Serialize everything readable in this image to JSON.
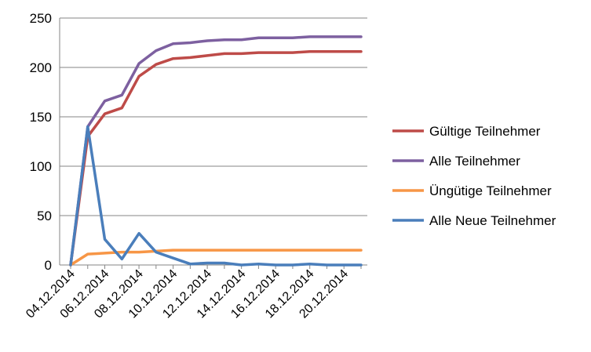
{
  "chart_data": {
    "type": "line",
    "title": "",
    "xlabel": "",
    "ylabel": "",
    "ylim": [
      0,
      250
    ],
    "yticks": [
      0,
      50,
      100,
      150,
      200,
      250
    ],
    "grid": "horizontal",
    "legend_position": "right",
    "x": [
      "04.12.2014",
      "05.12.2014",
      "06.12.2014",
      "07.12.2014",
      "08.12.2014",
      "09.12.2014",
      "10.12.2014",
      "11.12.2014",
      "12.12.2014",
      "13.12.2014",
      "14.12.2014",
      "15.12.2014",
      "16.12.2014",
      "17.12.2014",
      "18.12.2014",
      "19.12.2014",
      "20.12.2014",
      "21.12.2014"
    ],
    "xtick_labels": [
      "04.12.2014",
      "06.12.2014",
      "08.12.2014",
      "10.12.2014",
      "12.12.2014",
      "14.12.2014",
      "16.12.2014",
      "18.12.2014",
      "20.12.2014"
    ],
    "series": [
      {
        "name": "Gültige Teilnehmer",
        "color": "#be4b48",
        "values": [
          0,
          130,
          153,
          159,
          191,
          203,
          209,
          210,
          212,
          214,
          214,
          215,
          215,
          215,
          216,
          216,
          216,
          216
        ]
      },
      {
        "name": "Alle Teilnehmer",
        "color": "#7d60a0",
        "values": [
          0,
          140,
          166,
          172,
          204,
          217,
          224,
          225,
          227,
          228,
          228,
          230,
          230,
          230,
          231,
          231,
          231,
          231
        ]
      },
      {
        "name": "Üngütige Teilnehmer",
        "color": "#f79646",
        "values": [
          0,
          11,
          12,
          13,
          13,
          14,
          15,
          15,
          15,
          15,
          15,
          15,
          15,
          15,
          15,
          15,
          15,
          15
        ]
      },
      {
        "name": "Alle Neue Teilnehmer",
        "color": "#4a7ebb",
        "values": [
          0,
          140,
          26,
          6,
          32,
          13,
          7,
          1,
          2,
          2,
          0,
          1,
          0,
          0,
          1,
          0,
          0,
          0
        ]
      }
    ]
  }
}
